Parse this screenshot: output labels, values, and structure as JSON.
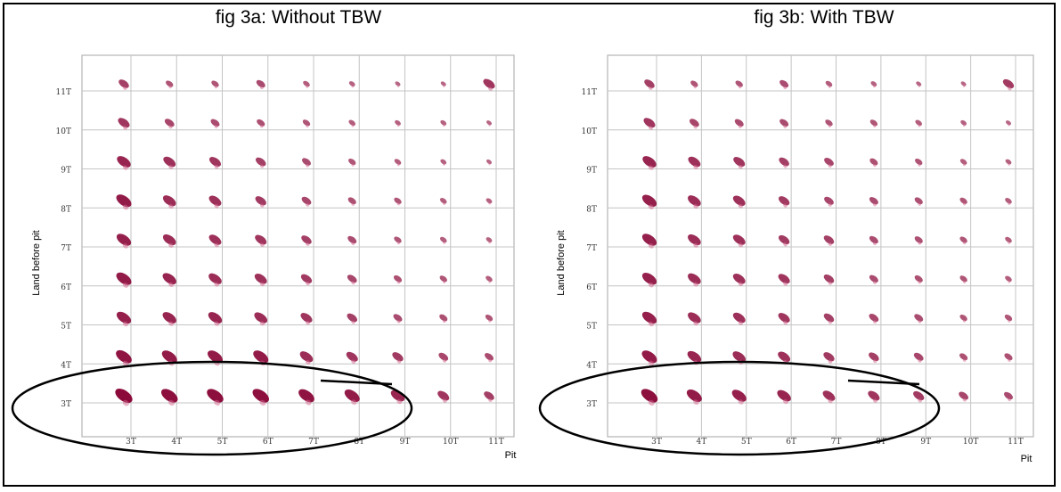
{
  "chart_data": [
    {
      "id": "a",
      "type": "scatter",
      "title": "fig 3a:  Without TBW",
      "xlabel": "Pit",
      "ylabel": "Land before pit",
      "x_categories": [
        "3T",
        "4T",
        "5T",
        "6T",
        "7T",
        "8T",
        "9T",
        "10T",
        "11T"
      ],
      "y_categories": [
        "3T",
        "4T",
        "5T",
        "6T",
        "7T",
        "8T",
        "9T",
        "10T",
        "11T"
      ],
      "grid": true,
      "point_color": "#8b0a3a",
      "points_intensity": [
        [
          1.0,
          0.95,
          0.95,
          0.95,
          0.9,
          0.85,
          0.75,
          0.6,
          0.5
        ],
        [
          0.9,
          0.85,
          0.85,
          0.85,
          0.7,
          0.6,
          0.55,
          0.45,
          0.4
        ],
        [
          0.8,
          0.75,
          0.75,
          0.7,
          0.6,
          0.5,
          0.4,
          0.35,
          0.3
        ],
        [
          0.85,
          0.75,
          0.7,
          0.65,
          0.55,
          0.45,
          0.35,
          0.3,
          0.25
        ],
        [
          0.8,
          0.7,
          0.65,
          0.6,
          0.5,
          0.4,
          0.3,
          0.25,
          0.2
        ],
        [
          0.85,
          0.7,
          0.65,
          0.55,
          0.45,
          0.35,
          0.3,
          0.25,
          0.2
        ],
        [
          0.75,
          0.65,
          0.6,
          0.5,
          0.4,
          0.3,
          0.25,
          0.2,
          0.15
        ],
        [
          0.6,
          0.45,
          0.4,
          0.35,
          0.3,
          0.25,
          0.2,
          0.2,
          0.15
        ],
        [
          0.5,
          0.3,
          0.3,
          0.4,
          0.25,
          0.2,
          0.15,
          0.15,
          0.6
        ]
      ],
      "annotation": "ellipse around row 3T with tangent line"
    },
    {
      "id": "b",
      "type": "scatter",
      "title": "fig 3b:  With TBW",
      "xlabel": "Pit",
      "ylabel": "Land before pit",
      "x_categories": [
        "3T",
        "4T",
        "5T",
        "6T",
        "7T",
        "8T",
        "9T",
        "10T",
        "11T"
      ],
      "y_categories": [
        "3T",
        "4T",
        "5T",
        "6T",
        "7T",
        "8T",
        "9T",
        "10T",
        "11T"
      ],
      "grid": true,
      "point_color": "#8b0a3a",
      "points_intensity": [
        [
          0.95,
          0.85,
          0.8,
          0.75,
          0.65,
          0.6,
          0.55,
          0.45,
          0.4
        ],
        [
          0.85,
          0.75,
          0.7,
          0.65,
          0.55,
          0.5,
          0.45,
          0.35,
          0.35
        ],
        [
          0.8,
          0.7,
          0.65,
          0.6,
          0.5,
          0.45,
          0.4,
          0.3,
          0.3
        ],
        [
          0.8,
          0.7,
          0.65,
          0.6,
          0.5,
          0.4,
          0.35,
          0.3,
          0.25
        ],
        [
          0.8,
          0.7,
          0.65,
          0.55,
          0.5,
          0.4,
          0.35,
          0.3,
          0.25
        ],
        [
          0.8,
          0.7,
          0.65,
          0.55,
          0.45,
          0.4,
          0.35,
          0.3,
          0.25
        ],
        [
          0.75,
          0.65,
          0.6,
          0.5,
          0.45,
          0.35,
          0.3,
          0.25,
          0.2
        ],
        [
          0.6,
          0.45,
          0.4,
          0.4,
          0.3,
          0.3,
          0.25,
          0.2,
          0.15
        ],
        [
          0.5,
          0.3,
          0.3,
          0.4,
          0.25,
          0.2,
          0.15,
          0.15,
          0.55
        ]
      ],
      "annotation": "ellipse around row 3T with tangent line"
    }
  ]
}
